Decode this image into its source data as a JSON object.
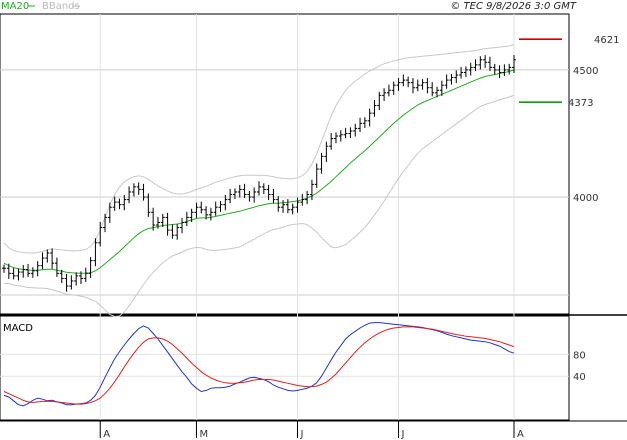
{
  "header": {
    "legend_ma": "MA20",
    "legend_bb": "BBands",
    "copyright": "© TEC 9/8/2026 3:0 GMT"
  },
  "colors": {
    "ma": "#22aa22",
    "bbands": "#c8c8c8",
    "price": "#000000",
    "resistance": "#cc0000",
    "support": "#119911",
    "macd": "#2233cc",
    "signal": "#dd2222",
    "grid": "#cccccc"
  },
  "chart_data": [
    {
      "type": "line",
      "panel": "price",
      "ylim": [
        3540,
        4720
      ],
      "y_ticks": [
        {
          "value": 4500,
          "label": "4500"
        },
        {
          "value": 4000,
          "label": "4000"
        }
      ],
      "x_month_labels": [
        {
          "index": 20,
          "label": "A"
        },
        {
          "index": 40,
          "label": "M"
        },
        {
          "index": 61,
          "label": "J"
        },
        {
          "index": 82,
          "label": "J"
        },
        {
          "index": 106,
          "label": "A"
        }
      ],
      "levels": [
        {
          "name": "resistance",
          "value": 4621,
          "label": "4621"
        },
        {
          "name": "support",
          "value": 4373,
          "label": "4373"
        }
      ],
      "close": [
        3720,
        3700,
        3690,
        3705,
        3715,
        3700,
        3710,
        3730,
        3760,
        3780,
        3740,
        3700,
        3680,
        3650,
        3670,
        3690,
        3680,
        3700,
        3750,
        3820,
        3880,
        3920,
        3960,
        3980,
        3970,
        3990,
        4020,
        4040,
        4030,
        4000,
        3940,
        3890,
        3900,
        3920,
        3870,
        3850,
        3880,
        3900,
        3920,
        3940,
        3960,
        3950,
        3930,
        3940,
        3960,
        3970,
        3990,
        4010,
        4020,
        4030,
        4010,
        4000,
        4020,
        4040,
        4030,
        4010,
        3990,
        3960,
        3970,
        3950,
        3960,
        3980,
        3990,
        4010,
        4050,
        4110,
        4160,
        4200,
        4230,
        4240,
        4245,
        4250,
        4260,
        4270,
        4290,
        4300,
        4330,
        4360,
        4400,
        4410,
        4420,
        4440,
        4450,
        4460,
        4450,
        4430,
        4440,
        4450,
        4430,
        4410,
        4420,
        4440,
        4460,
        4470,
        4480,
        4490,
        4500,
        4510,
        4520,
        4540,
        4530,
        4510,
        4500,
        4490,
        4500,
        4510,
        4540
      ],
      "ma20": [
        3740,
        3730,
        3722,
        3718,
        3715,
        3712,
        3712,
        3712,
        3714,
        3716,
        3716,
        3712,
        3708,
        3704,
        3702,
        3701,
        3700,
        3700,
        3702,
        3710,
        3722,
        3738,
        3754,
        3770,
        3786,
        3804,
        3822,
        3840,
        3856,
        3868,
        3876,
        3880,
        3884,
        3888,
        3890,
        3892,
        3894,
        3898,
        3904,
        3910,
        3916,
        3918,
        3918,
        3920,
        3924,
        3928,
        3932,
        3936,
        3940,
        3944,
        3950,
        3955,
        3960,
        3966,
        3970,
        3974,
        3976,
        3976,
        3978,
        3980,
        3982,
        3985,
        3990,
        3996,
        4004,
        4016,
        4030,
        4046,
        4062,
        4080,
        4098,
        4116,
        4134,
        4150,
        4166,
        4182,
        4200,
        4218,
        4236,
        4254,
        4272,
        4290,
        4306,
        4322,
        4336,
        4350,
        4362,
        4372,
        4380,
        4388,
        4396,
        4404,
        4412,
        4420,
        4428,
        4436,
        4444,
        4452,
        4460,
        4468,
        4474,
        4478,
        4482,
        4486,
        4490,
        4494,
        4500
      ],
      "bb_upper": [
        3820,
        3800,
        3790,
        3785,
        3782,
        3780,
        3780,
        3782,
        3786,
        3792,
        3796,
        3794,
        3792,
        3790,
        3788,
        3788,
        3790,
        3794,
        3806,
        3830,
        3870,
        3920,
        3970,
        4010,
        4040,
        4060,
        4072,
        4080,
        4084,
        4080,
        4070,
        4056,
        4044,
        4034,
        4024,
        4016,
        4012,
        4012,
        4016,
        4022,
        4030,
        4036,
        4042,
        4050,
        4058,
        4064,
        4070,
        4075,
        4080,
        4084,
        4086,
        4086,
        4086,
        4086,
        4085,
        4083,
        4080,
        4076,
        4074,
        4072,
        4072,
        4076,
        4084,
        4100,
        4130,
        4170,
        4220,
        4270,
        4320,
        4360,
        4390,
        4420,
        4440,
        4456,
        4470,
        4484,
        4496,
        4506,
        4516,
        4524,
        4530,
        4536,
        4540,
        4544,
        4548,
        4550,
        4552,
        4554,
        4556,
        4558,
        4560,
        4562,
        4564,
        4566,
        4568,
        4570,
        4572,
        4574,
        4576,
        4580,
        4584,
        4586,
        4588,
        4590,
        4592,
        4594,
        4600
      ],
      "bb_lower": [
        3660,
        3660,
        3654,
        3651,
        3648,
        3644,
        3644,
        3642,
        3642,
        3640,
        3636,
        3630,
        3624,
        3618,
        3616,
        3614,
        3610,
        3606,
        3598,
        3590,
        3574,
        3556,
        3538,
        3530,
        3532,
        3548,
        3572,
        3600,
        3628,
        3656,
        3682,
        3704,
        3724,
        3742,
        3756,
        3768,
        3776,
        3784,
        3792,
        3798,
        3802,
        3800,
        3794,
        3790,
        3790,
        3792,
        3794,
        3797,
        3800,
        3804,
        3814,
        3824,
        3834,
        3846,
        3855,
        3865,
        3872,
        3876,
        3882,
        3888,
        3892,
        3894,
        3896,
        3892,
        3878,
        3862,
        3840,
        3822,
        3804,
        3800,
        3806,
        3812,
        3828,
        3844,
        3862,
        3880,
        3904,
        3930,
        3956,
        3984,
        4014,
        4044,
        4072,
        4100,
        4124,
        4150,
        4172,
        4190,
        4204,
        4218,
        4232,
        4246,
        4260,
        4274,
        4288,
        4302,
        4316,
        4330,
        4344,
        4356,
        4364,
        4370,
        4376,
        4382,
        4388,
        4394,
        4400
      ]
    },
    {
      "type": "line",
      "panel": "macd",
      "title": "MACD",
      "ylim": [
        -40,
        150
      ],
      "y_ticks": [
        {
          "value": 80,
          "label": "80"
        },
        {
          "value": 40,
          "label": "40"
        }
      ],
      "series": [
        {
          "name": "macd",
          "values": [
            5,
            2,
            -5,
            -12,
            -14,
            -10,
            -4,
            0,
            -2,
            -5,
            -4,
            -7,
            -9,
            -12,
            -12,
            -11,
            -10,
            -9,
            -4,
            5,
            20,
            38,
            55,
            72,
            85,
            97,
            108,
            118,
            127,
            132,
            128,
            118,
            108,
            96,
            84,
            72,
            60,
            48,
            38,
            26,
            18,
            12,
            14,
            18,
            19,
            19,
            20,
            22,
            26,
            29,
            33,
            37,
            38,
            36,
            34,
            30,
            24,
            20,
            17,
            14,
            13,
            14,
            16,
            18,
            22,
            28,
            40,
            55,
            70,
            84,
            96,
            108,
            116,
            122,
            128,
            133,
            137,
            138,
            138,
            137,
            136,
            135,
            134,
            133,
            132,
            131,
            130,
            129,
            127,
            125,
            123,
            120,
            117,
            114,
            112,
            110,
            108,
            106,
            105,
            104,
            103,
            101,
            98,
            95,
            90,
            85,
            82
          ]
        },
        {
          "name": "signal",
          "values": [
            12,
            8,
            4,
            0,
            -4,
            -7,
            -8,
            -7,
            -6,
            -6,
            -6,
            -7,
            -8,
            -9,
            -10,
            -11,
            -11,
            -10,
            -8,
            -5,
            0,
            8,
            18,
            30,
            43,
            57,
            70,
            82,
            93,
            102,
            108,
            110,
            110,
            108,
            104,
            98,
            90,
            82,
            73,
            64,
            56,
            48,
            42,
            37,
            33,
            30,
            28,
            27,
            27,
            28,
            29,
            31,
            33,
            34,
            34,
            34,
            33,
            31,
            29,
            27,
            25,
            23,
            22,
            21,
            21,
            22,
            25,
            29,
            36,
            44,
            54,
            64,
            74,
            84,
            93,
            101,
            108,
            114,
            119,
            123,
            126,
            128,
            129,
            130,
            130,
            130,
            129,
            128,
            127,
            126,
            124,
            122,
            120,
            118,
            116,
            115,
            113,
            112,
            111,
            110,
            109,
            107,
            105,
            103,
            100,
            97,
            94
          ]
        }
      ]
    }
  ]
}
